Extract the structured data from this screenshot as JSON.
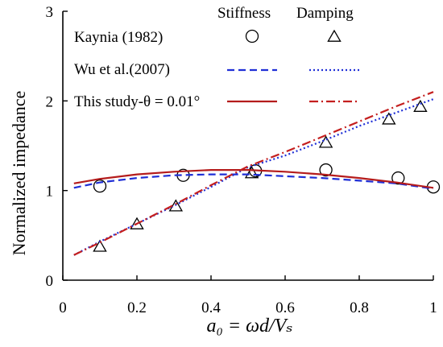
{
  "chart_data": {
    "type": "line",
    "xlabel": "a₀ = ωd/Vₛ",
    "ylabel": "Normalized  impedance",
    "xlim": [
      0,
      1
    ],
    "ylim": [
      0,
      3
    ],
    "xticks": [
      "0",
      "0.2",
      "0.4",
      "0.6",
      "0.8",
      "1"
    ],
    "yticks": [
      "0",
      "1",
      "2",
      "3"
    ],
    "grid": false,
    "legend_position": "top-left",
    "legend_headers": [
      "Stiffness",
      "Damping"
    ],
    "legend_rows": [
      "Kaynia (1982)",
      "Wu et al.(2007)",
      "This study-θ = 0.01°"
    ],
    "series": [
      {
        "name": "Kaynia (1982) - Stiffness",
        "style": "markers-circle",
        "color": "#000000",
        "x": [
          0.1,
          0.325,
          0.52,
          0.71,
          0.905,
          1.0
        ],
        "y": [
          1.05,
          1.17,
          1.22,
          1.23,
          1.14,
          1.04
        ]
      },
      {
        "name": "Kaynia (1982) - Damping",
        "style": "markers-triangle",
        "color": "#000000",
        "x": [
          0.1,
          0.2,
          0.305,
          0.51,
          0.71,
          0.88,
          0.965
        ],
        "y": [
          0.37,
          0.62,
          0.82,
          1.19,
          1.53,
          1.79,
          1.93
        ]
      },
      {
        "name": "Wu et al.(2007) - Stiffness",
        "style": "dashed",
        "color": "#1f2fd6",
        "x": [
          0.03,
          0.1,
          0.2,
          0.3,
          0.4,
          0.5,
          0.6,
          0.7,
          0.8,
          0.9,
          1.0
        ],
        "y": [
          1.03,
          1.09,
          1.14,
          1.17,
          1.18,
          1.18,
          1.16,
          1.14,
          1.11,
          1.08,
          1.02
        ]
      },
      {
        "name": "Wu et al.(2007) - Damping",
        "style": "dotted",
        "color": "#1f2fd6",
        "x": [
          0.03,
          0.1,
          0.2,
          0.3,
          0.4,
          0.5,
          0.6,
          0.7,
          0.8,
          0.9,
          1.0
        ],
        "y": [
          0.28,
          0.43,
          0.63,
          0.83,
          1.04,
          1.26,
          1.39,
          1.55,
          1.72,
          1.87,
          2.02
        ]
      },
      {
        "name": "This study - Stiffness",
        "style": "solid",
        "color": "#b51c1c",
        "x": [
          0.03,
          0.1,
          0.2,
          0.3,
          0.4,
          0.5,
          0.6,
          0.7,
          0.8,
          0.9,
          1.0
        ],
        "y": [
          1.08,
          1.13,
          1.18,
          1.21,
          1.23,
          1.23,
          1.21,
          1.18,
          1.14,
          1.09,
          1.03
        ]
      },
      {
        "name": "This study - Damping",
        "style": "dashdot",
        "color": "#c41f1f",
        "x": [
          0.03,
          0.1,
          0.2,
          0.3,
          0.4,
          0.5,
          0.6,
          0.7,
          0.8,
          0.9,
          1.0
        ],
        "y": [
          0.28,
          0.42,
          0.63,
          0.84,
          1.06,
          1.27,
          1.43,
          1.6,
          1.77,
          1.94,
          2.1
        ]
      }
    ]
  }
}
